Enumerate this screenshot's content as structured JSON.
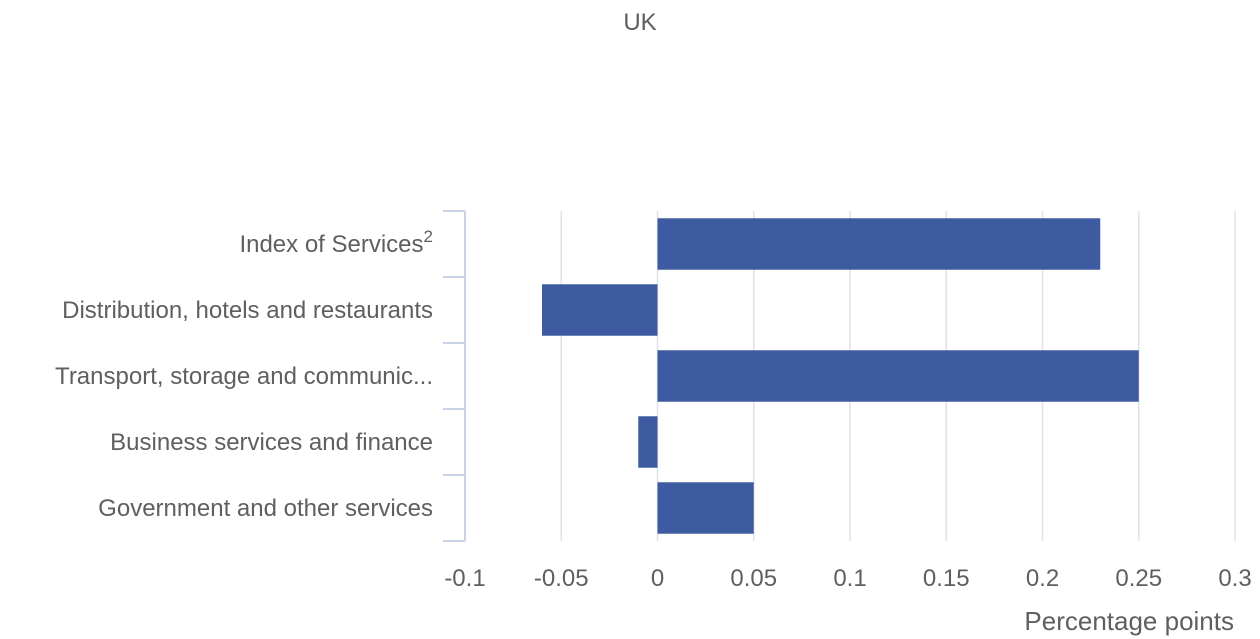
{
  "chart_data": {
    "type": "bar",
    "orientation": "horizontal",
    "title": "UK",
    "xlabel": "Percentage points",
    "ylabel": "",
    "categories": [
      "Index of Services",
      "Distribution, hotels and restaurants",
      "Transport, storage and communic...",
      "Business services and finance",
      "Government and other services"
    ],
    "category_superscripts": [
      "2",
      "",
      "",
      "",
      ""
    ],
    "values": [
      0.23,
      -0.06,
      0.25,
      -0.01,
      0.05
    ],
    "xlim": [
      -0.1,
      0.3
    ],
    "xticks": [
      "-0.1",
      "-0.05",
      "0",
      "0.05",
      "0.1",
      "0.15",
      "0.2",
      "0.25",
      "0.3"
    ],
    "grid": true,
    "legend": "none",
    "colors": {
      "bar": "#2f4f9b",
      "grid": "#dde2ea",
      "text": "#5f5f5f"
    }
  }
}
